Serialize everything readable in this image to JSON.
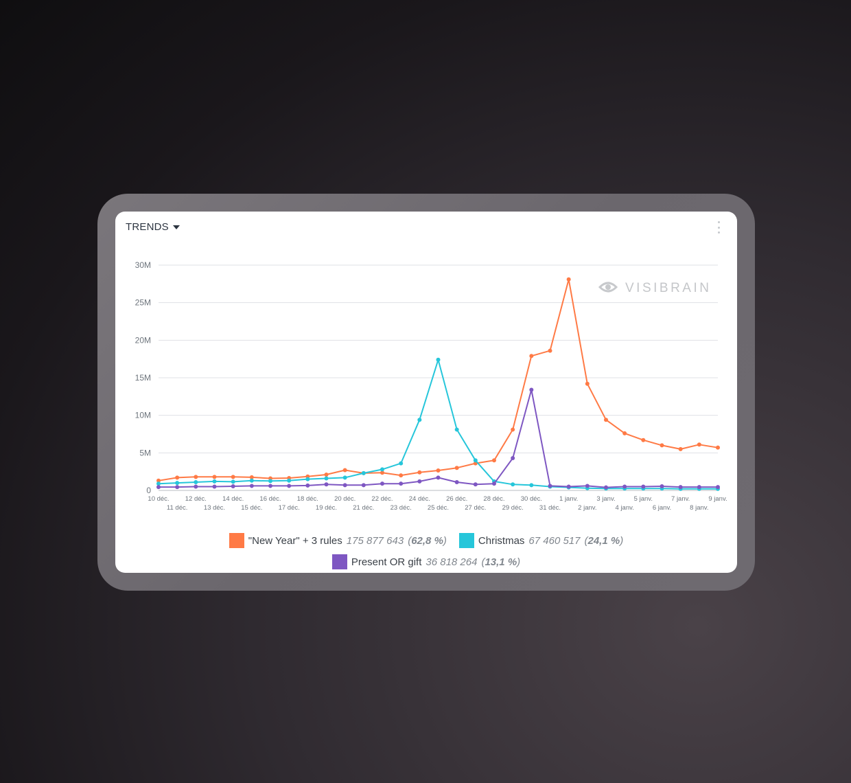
{
  "header": {
    "title": "TRENDS",
    "menu_icon": "kebab-menu-icon"
  },
  "watermark": {
    "text": "VISIBRAIN",
    "icon": "eye-icon"
  },
  "colors": {
    "new_year": "#ff7a45",
    "christmas": "#26c6da",
    "present": "#7e57c2",
    "grid": "#dfe1e4",
    "axis": "#b9bdc2"
  },
  "chart_data": {
    "type": "line",
    "ylim": [
      0,
      30000000
    ],
    "yticks": [
      {
        "value": 0,
        "label": "0"
      },
      {
        "value": 5000000,
        "label": "5M"
      },
      {
        "value": 10000000,
        "label": "10M"
      },
      {
        "value": 15000000,
        "label": "15M"
      },
      {
        "value": 20000000,
        "label": "20M"
      },
      {
        "value": 25000000,
        "label": "25M"
      },
      {
        "value": 30000000,
        "label": "30M"
      }
    ],
    "grid": true,
    "legend_position": "bottom",
    "x": [
      "10 déc.",
      "11 déc.",
      "12 déc.",
      "13 déc.",
      "14 déc.",
      "15 déc.",
      "16 déc.",
      "17 déc.",
      "18 déc.",
      "19 déc.",
      "20 déc.",
      "21 déc.",
      "22 déc.",
      "23 déc.",
      "24 déc.",
      "25 déc.",
      "26 déc.",
      "27 déc.",
      "28 déc.",
      "29 déc.",
      "30 déc.",
      "31 déc.",
      "1 janv.",
      "2 janv.",
      "3 janv.",
      "4 janv.",
      "5 janv.",
      "6 janv.",
      "7 janv.",
      "8 janv.",
      "9 janv."
    ],
    "series": [
      {
        "name": "\"New Year\" + 3 rules",
        "total": "175 877 643",
        "share": "62,8 %",
        "color": "#ff7a45",
        "values": [
          1300000,
          1700000,
          1800000,
          1800000,
          1800000,
          1750000,
          1600000,
          1650000,
          1850000,
          2100000,
          2700000,
          2300000,
          2350000,
          2000000,
          2400000,
          2650000,
          3000000,
          3600000,
          4000000,
          8100000,
          17900000,
          18600000,
          28100000,
          14200000,
          9400000,
          7600000,
          6700000,
          6000000,
          5500000,
          6100000,
          5700000
        ]
      },
      {
        "name": "Christmas",
        "total": "67 460 517",
        "share": "24,1 %",
        "color": "#26c6da",
        "values": [
          900000,
          1000000,
          1100000,
          1200000,
          1150000,
          1300000,
          1250000,
          1300000,
          1500000,
          1600000,
          1700000,
          2300000,
          2800000,
          3600000,
          9400000,
          17400000,
          8100000,
          4000000,
          1200000,
          800000,
          700000,
          500000,
          400000,
          300000,
          250000,
          250000,
          250000,
          250000,
          200000,
          200000,
          200000
        ]
      },
      {
        "name": "Present OR gift",
        "total": "36 818 264",
        "share": "13,1 %",
        "color": "#7e57c2",
        "values": [
          450000,
          450000,
          500000,
          500000,
          550000,
          600000,
          600000,
          600000,
          650000,
          800000,
          700000,
          700000,
          900000,
          900000,
          1200000,
          1700000,
          1100000,
          800000,
          900000,
          4300000,
          13400000,
          600000,
          500000,
          600000,
          400000,
          500000,
          500000,
          550000,
          450000,
          450000,
          450000
        ]
      }
    ]
  }
}
